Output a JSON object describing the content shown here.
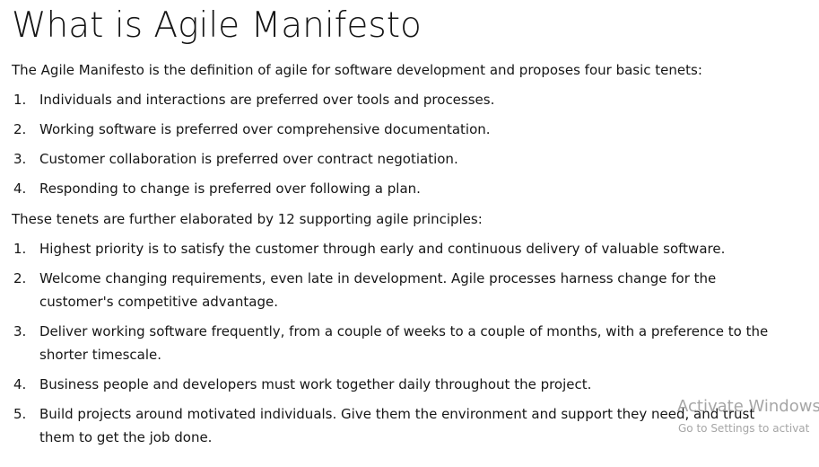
{
  "title": "What is Agile Manifesto",
  "intro": "The Agile Manifesto is the definition of agile for software development and proposes four basic tenets:",
  "tenets": [
    {
      "num": "1.",
      "text": "Individuals and interactions are preferred over tools and processes."
    },
    {
      "num": "2.",
      "text": "Working software is preferred over comprehensive documentation."
    },
    {
      "num": "3.",
      "text": "Customer collaboration is preferred over contract negotiation."
    },
    {
      "num": "4.",
      "text": "Responding to change is preferred over following a plan."
    }
  ],
  "principles_intro": "These tenets are further elaborated by 12 supporting agile principles:",
  "principles": [
    {
      "num": "1.",
      "text": "Highest priority is to satisfy the customer through early and continuous delivery of valuable software."
    },
    {
      "num": "2.",
      "text": "Welcome changing requirements, even late in development. Agile processes harness change for the customer's competitive advantage."
    },
    {
      "num": "3.",
      "text": "Deliver working software frequently, from a couple of weeks to a couple of months, with a preference to the shorter timescale."
    },
    {
      "num": "4.",
      "text": "Business people and developers must work together daily throughout the project."
    },
    {
      "num": "5.",
      "text": "Build projects around motivated individuals. Give them the environment and support they need, and trust them to get the job done."
    }
  ],
  "watermark": {
    "line1": "Activate Windows",
    "line2": "Go to Settings to activat"
  }
}
